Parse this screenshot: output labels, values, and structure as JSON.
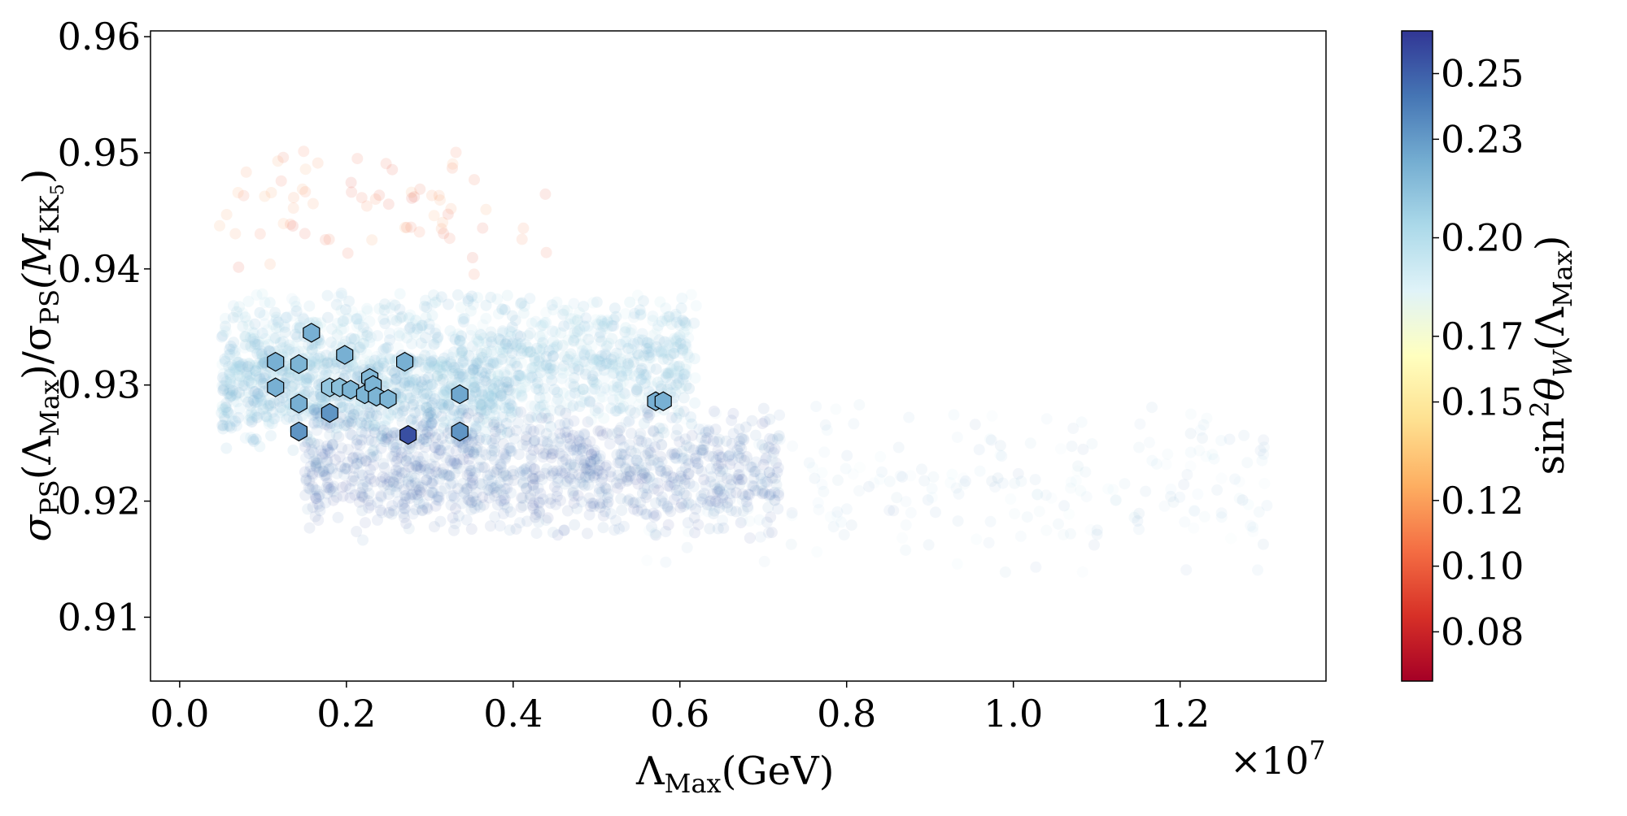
{
  "chart_data": {
    "type": "scatter",
    "title": "",
    "xlabel": {
      "main": "Λ",
      "sub": "Max",
      "tail": "(GeV)"
    },
    "x_multiplier": "×10",
    "x_multiplier_exp": "7",
    "ylabel": {
      "p1": "σ",
      "p1_sub": "PS",
      "p2": "(Λ",
      "p2_sub": "Max",
      "p3": ")/σ",
      "p3_sub": "PS",
      "p4": "(M",
      "p4_sub": "KK",
      "p4_subsub": "5",
      "p5": ")"
    },
    "xlim": [
      -0.035,
      1.375
    ],
    "ylim": [
      0.9045,
      0.9605
    ],
    "x_ticks": [
      0.0,
      0.2,
      0.4,
      0.6,
      0.8,
      1.0,
      1.2
    ],
    "x_tick_labels": [
      "0.0",
      "0.2",
      "0.4",
      "0.6",
      "0.8",
      "1.0",
      "1.2"
    ],
    "y_ticks": [
      0.91,
      0.92,
      0.93,
      0.94,
      0.95,
      0.96
    ],
    "y_tick_labels": [
      "0.91",
      "0.92",
      "0.93",
      "0.94",
      "0.95",
      "0.96"
    ],
    "grid": false,
    "colorbar": {
      "label": {
        "p1": "sin",
        "p1_sup": "2",
        "p2": "θ",
        "p2_sub": "W",
        "p3": "(Λ",
        "p3_sub": "Max",
        "p4": ")"
      },
      "range": [
        0.065,
        0.263
      ],
      "colormap": "RdYlBu",
      "colors": [
        "#a50026",
        "#d73027",
        "#f46d43",
        "#fdae61",
        "#fee090",
        "#ffffbf",
        "#e0f3f8",
        "#abd9e9",
        "#74add1",
        "#4575b4",
        "#313695"
      ],
      "ticks": [
        0.08,
        0.1,
        0.12,
        0.15,
        0.17,
        0.2,
        0.23,
        0.25
      ],
      "tick_labels": [
        "0.08",
        "0.10",
        "0.12",
        "0.15",
        "0.17",
        "0.20",
        "0.23",
        "0.25"
      ]
    },
    "series": [
      {
        "marker": "hexagon",
        "points": [
          {
            "x": 0.115,
            "y": 0.932,
            "c": 0.222
          },
          {
            "x": 0.143,
            "y": 0.9318,
            "c": 0.22
          },
          {
            "x": 0.158,
            "y": 0.9345,
            "c": 0.222
          },
          {
            "x": 0.198,
            "y": 0.9326,
            "c": 0.222
          },
          {
            "x": 0.115,
            "y": 0.9298,
            "c": 0.222
          },
          {
            "x": 0.143,
            "y": 0.9284,
            "c": 0.222
          },
          {
            "x": 0.18,
            "y": 0.9298,
            "c": 0.212
          },
          {
            "x": 0.192,
            "y": 0.9298,
            "c": 0.215
          },
          {
            "x": 0.205,
            "y": 0.9296,
            "c": 0.22
          },
          {
            "x": 0.222,
            "y": 0.9292,
            "c": 0.22
          },
          {
            "x": 0.228,
            "y": 0.9306,
            "c": 0.218
          },
          {
            "x": 0.232,
            "y": 0.93,
            "c": 0.22
          },
          {
            "x": 0.236,
            "y": 0.929,
            "c": 0.22
          },
          {
            "x": 0.25,
            "y": 0.9288,
            "c": 0.22
          },
          {
            "x": 0.27,
            "y": 0.932,
            "c": 0.222
          },
          {
            "x": 0.18,
            "y": 0.9276,
            "c": 0.232
          },
          {
            "x": 0.143,
            "y": 0.926,
            "c": 0.232
          },
          {
            "x": 0.274,
            "y": 0.9257,
            "c": 0.255
          },
          {
            "x": 0.336,
            "y": 0.9292,
            "c": 0.225
          },
          {
            "x": 0.336,
            "y": 0.926,
            "c": 0.232
          },
          {
            "x": 0.571,
            "y": 0.9286,
            "c": 0.222
          },
          {
            "x": 0.58,
            "y": 0.9286,
            "c": 0.222
          }
        ]
      }
    ],
    "background_scatter": {
      "clusters": [
        {
          "xmin": 0.03,
          "xmax": 0.45,
          "ymin": 0.9385,
          "ymax": 0.9515,
          "cmin": 0.09,
          "cmax": 0.12,
          "count": 70,
          "alpha": 0.12
        },
        {
          "xmin": 0.05,
          "xmax": 0.62,
          "ymin": 0.9255,
          "ymax": 0.9385,
          "cmin": 0.19,
          "cmax": 0.222,
          "count": 1300,
          "alpha": 0.15
        },
        {
          "xmin": 0.05,
          "xmax": 0.4,
          "ymin": 0.924,
          "ymax": 0.934,
          "cmin": 0.2,
          "cmax": 0.23,
          "count": 500,
          "alpha": 0.15
        },
        {
          "xmin": 0.15,
          "xmax": 0.72,
          "ymin": 0.9165,
          "ymax": 0.9285,
          "cmin": 0.232,
          "cmax": 0.258,
          "count": 1100,
          "alpha": 0.09
        },
        {
          "xmin": 0.55,
          "xmax": 1.31,
          "ymin": 0.9135,
          "ymax": 0.9295,
          "cmin": 0.19,
          "cmax": 0.24,
          "count": 260,
          "alpha": 0.07
        }
      ]
    }
  }
}
